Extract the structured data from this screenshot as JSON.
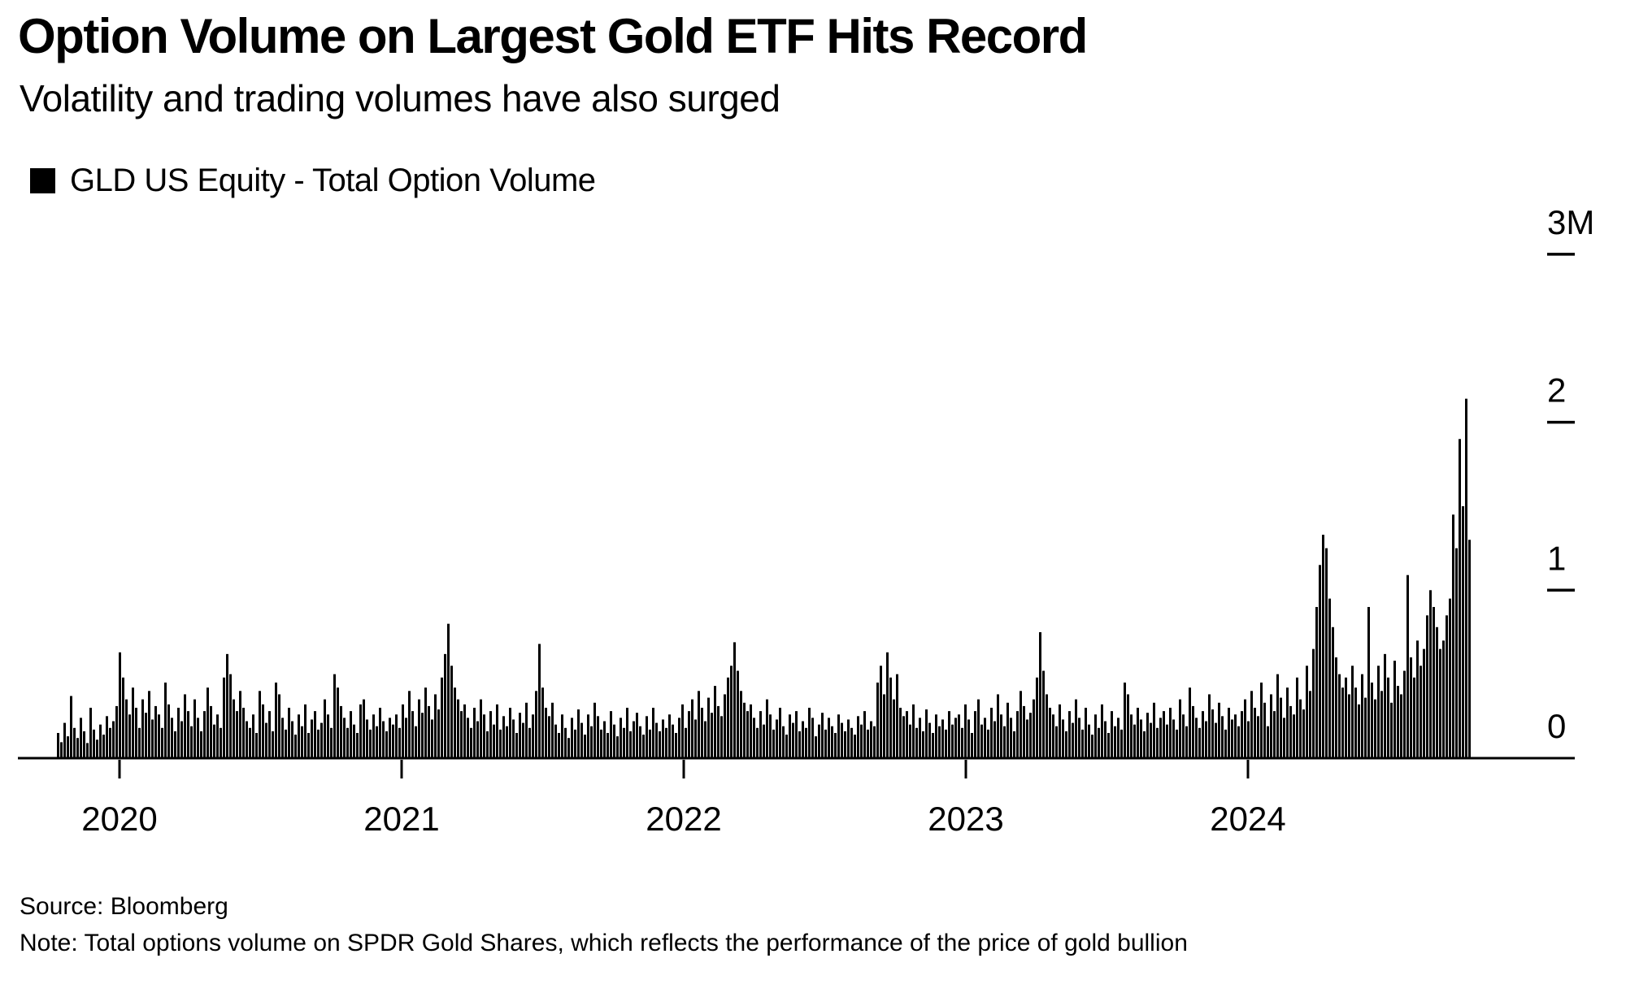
{
  "header": {
    "title": "Option Volume on Largest Gold ETF Hits Record",
    "subtitle": "Volatility and trading volumes have also surged"
  },
  "legend": {
    "label": "GLD US Equity - Total Option Volume"
  },
  "footer": {
    "source": "Source: Bloomberg",
    "note": "Note: Total options volume on SPDR Gold Shares, which reflects the performance of the price of gold bullion"
  },
  "colors": {
    "bar": "#000000",
    "axis": "#000000",
    "text": "#000000",
    "background": "#ffffff"
  },
  "chart_data": {
    "type": "bar",
    "title": "Option Volume on Largest Gold ETF Hits Record",
    "series_name": "GLD US Equity - Total Option Volume",
    "values_unit": "thousands of option contracts per trading day",
    "x_range": "Oct 2019 - Oct 2024 (daily)",
    "grid": false,
    "legend_position": "top-left",
    "y_axis": {
      "max": 3000,
      "ticks": [
        {
          "label": "3M",
          "value": 3000,
          "dash": true
        },
        {
          "label": "2",
          "value": 2000,
          "dash": true
        },
        {
          "label": "1",
          "value": 1000,
          "dash": true
        },
        {
          "label": "0",
          "value": 0,
          "dash": false
        }
      ]
    },
    "x_axis": {
      "tick_labels": [
        "2020",
        "2021",
        "2022",
        "2023",
        "2024"
      ]
    },
    "values": [
      150,
      95,
      210,
      130,
      370,
      180,
      120,
      240,
      160,
      90,
      300,
      170,
      110,
      200,
      140,
      250,
      180,
      220,
      310,
      630,
      480,
      350,
      260,
      420,
      300,
      180,
      350,
      270,
      400,
      230,
      310,
      260,
      180,
      450,
      320,
      240,
      160,
      300,
      220,
      380,
      280,
      190,
      350,
      240,
      160,
      280,
      420,
      310,
      200,
      260,
      180,
      480,
      620,
      500,
      350,
      280,
      400,
      300,
      220,
      180,
      260,
      150,
      400,
      320,
      210,
      280,
      160,
      450,
      380,
      240,
      170,
      300,
      220,
      140,
      260,
      190,
      320,
      150,
      230,
      280,
      170,
      210,
      350,
      260,
      180,
      500,
      420,
      310,
      240,
      180,
      280,
      200,
      150,
      320,
      350,
      230,
      170,
      260,
      190,
      300,
      220,
      160,
      240,
      200,
      260,
      180,
      320,
      240,
      400,
      280,
      190,
      350,
      270,
      420,
      310,
      230,
      380,
      290,
      480,
      620,
      800,
      550,
      420,
      350,
      280,
      320,
      240,
      180,
      300,
      220,
      350,
      260,
      160,
      280,
      200,
      320,
      170,
      250,
      190,
      300,
      230,
      150,
      270,
      210,
      330,
      180,
      260,
      400,
      680,
      420,
      300,
      250,
      330,
      200,
      150,
      260,
      180,
      120,
      240,
      170,
      290,
      210,
      140,
      260,
      190,
      330,
      250,
      170,
      220,
      150,
      280,
      200,
      130,
      240,
      180,
      300,
      160,
      220,
      270,
      190,
      140,
      250,
      170,
      300,
      210,
      160,
      230,
      180,
      260,
      200,
      150,
      240,
      320,
      180,
      280,
      350,
      230,
      400,
      300,
      220,
      360,
      270,
      430,
      310,
      250,
      380,
      480,
      550,
      690,
      520,
      400,
      330,
      280,
      320,
      240,
      180,
      280,
      200,
      350,
      260,
      170,
      230,
      300,
      190,
      140,
      260,
      210,
      280,
      160,
      220,
      180,
      300,
      240,
      130,
      200,
      270,
      170,
      240,
      190,
      150,
      260,
      210,
      160,
      230,
      180,
      140,
      250,
      200,
      280,
      170,
      220,
      190,
      450,
      550,
      380,
      630,
      480,
      350,
      500,
      300,
      250,
      280,
      200,
      320,
      180,
      240,
      160,
      290,
      210,
      150,
      260,
      190,
      230,
      170,
      280,
      200,
      240,
      260,
      180,
      320,
      230,
      150,
      280,
      350,
      200,
      240,
      170,
      300,
      220,
      380,
      260,
      190,
      330,
      240,
      160,
      280,
      400,
      310,
      230,
      270,
      350,
      480,
      750,
      520,
      380,
      300,
      260,
      190,
      320,
      230,
      160,
      280,
      210,
      350,
      240,
      170,
      300,
      200,
      140,
      260,
      180,
      320,
      220,
      150,
      280,
      190,
      240,
      170,
      450,
      380,
      260,
      200,
      300,
      230,
      160,
      270,
      210,
      330,
      180,
      240,
      280,
      200,
      300,
      230,
      170,
      350,
      260,
      190,
      420,
      310,
      240,
      180,
      280,
      220,
      380,
      290,
      210,
      330,
      250,
      170,
      300,
      230,
      260,
      190,
      280,
      350,
      220,
      400,
      300,
      250,
      450,
      330,
      190,
      380,
      280,
      500,
      360,
      240,
      420,
      310,
      260,
      480,
      350,
      290,
      550,
      400,
      650,
      900,
      1150,
      1330,
      1250,
      950,
      780,
      600,
      500,
      420,
      480,
      380,
      550,
      420,
      320,
      500,
      360,
      900,
      450,
      350,
      550,
      400,
      620,
      480,
      330,
      580,
      430,
      380,
      520,
      1090,
      600,
      480,
      700,
      550,
      650,
      850,
      1000,
      900,
      780,
      650,
      700,
      850,
      950,
      1450,
      1250,
      1900,
      1500,
      2140,
      1300
    ]
  }
}
